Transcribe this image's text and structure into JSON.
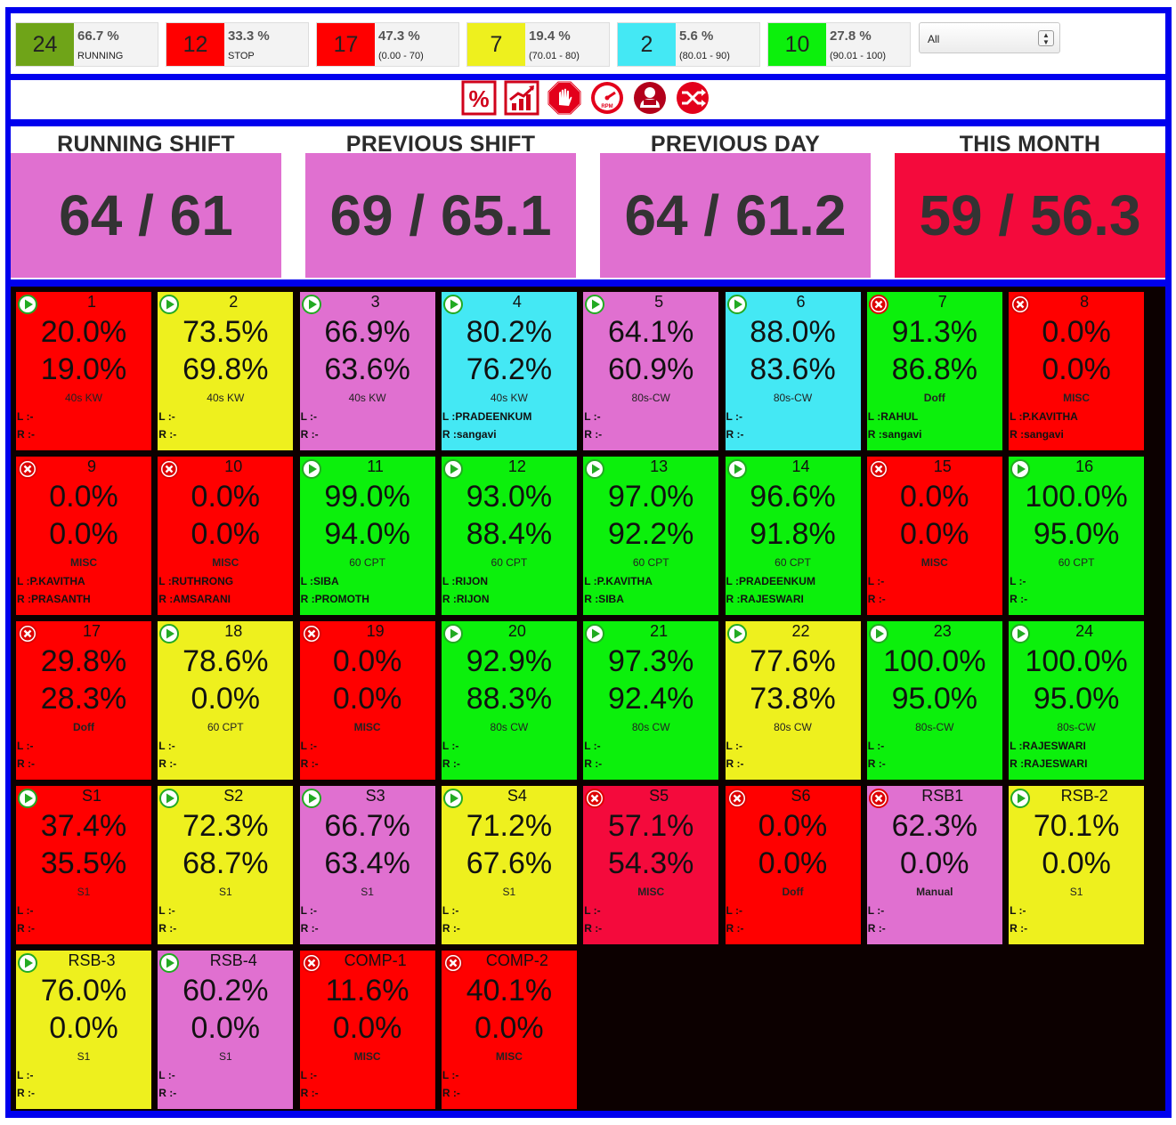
{
  "colors": {
    "red": "#ff0000",
    "yellow": "#eef01e",
    "pink": "#e070d0",
    "cyan": "#44e8f4",
    "green": "#0cf00c",
    "crimson": "#f40a3c",
    "olive": "#6fa418",
    "frame_blue": "#0000ee"
  },
  "summary": [
    {
      "count": "24",
      "pct": "66.7 %",
      "label": "RUNNING",
      "color": "#6fa418"
    },
    {
      "count": "12",
      "pct": "33.3 %",
      "label": "STOP",
      "color": "#ff0000"
    },
    {
      "count": "17",
      "pct": "47.3 %",
      "label": "(0.00 - 70)",
      "color": "#ff0000"
    },
    {
      "count": "7",
      "pct": "19.4 %",
      "label": "(70.01 - 80)",
      "color": "#eef01e"
    },
    {
      "count": "2",
      "pct": "5.6 %",
      "label": "(80.01 - 90)",
      "color": "#44e8f4"
    },
    {
      "count": "10",
      "pct": "27.8 %",
      "label": "(90.01 - 100)",
      "color": "#0cf00c"
    }
  ],
  "filter": {
    "selected": "All"
  },
  "toolbar": [
    {
      "icon": "percent-icon"
    },
    {
      "icon": "trend-chart-icon"
    },
    {
      "icon": "stop-hand-icon"
    },
    {
      "icon": "rpm-gauge-icon"
    },
    {
      "icon": "operator-icon"
    },
    {
      "icon": "shuffle-icon"
    }
  ],
  "stats": [
    {
      "title": "RUNNING SHIFT",
      "value": "64 / 61",
      "color": "#e070d0"
    },
    {
      "title": "PREVIOUS SHIFT",
      "value": "69 / 65.1",
      "color": "#e070d0"
    },
    {
      "title": "PREVIOUS DAY",
      "value": "64 / 61.2",
      "color": "#e070d0"
    },
    {
      "title": "THIS MONTH",
      "value": "59 / 56.3",
      "color": "#f40a3c"
    }
  ],
  "machines": [
    {
      "id": "1",
      "p1": "20.0%",
      "p2": "19.0%",
      "cat": "40s KW",
      "l": "L :-",
      "r": "R :-",
      "color": "#ff0000",
      "status": "running"
    },
    {
      "id": "2",
      "p1": "73.5%",
      "p2": "69.8%",
      "cat": "40s KW",
      "l": "L :-",
      "r": "R :-",
      "color": "#eef01e",
      "status": "running"
    },
    {
      "id": "3",
      "p1": "66.9%",
      "p2": "63.6%",
      "cat": "40s KW",
      "l": "L :-",
      "r": "R :-",
      "color": "#e070d0",
      "status": "running"
    },
    {
      "id": "4",
      "p1": "80.2%",
      "p2": "76.2%",
      "cat": "40s KW",
      "l": "L :PRADEENKUM",
      "r": "R :sangavi",
      "color": "#44e8f4",
      "status": "running"
    },
    {
      "id": "5",
      "p1": "64.1%",
      "p2": "60.9%",
      "cat": "80s-CW",
      "l": "L :-",
      "r": "R :-",
      "color": "#e070d0",
      "status": "running"
    },
    {
      "id": "6",
      "p1": "88.0%",
      "p2": "83.6%",
      "cat": "80s-CW",
      "l": "L :-",
      "r": "R :-",
      "color": "#44e8f4",
      "status": "running"
    },
    {
      "id": "7",
      "p1": "91.3%",
      "p2": "86.8%",
      "cat": "Doff",
      "l": "L :RAHUL",
      "r": "R :sangavi",
      "color": "#0cf00c",
      "status": "stopped"
    },
    {
      "id": "8",
      "p1": "0.0%",
      "p2": "0.0%",
      "cat": "MISC",
      "l": "L :P.KAVITHA",
      "r": "R :sangavi",
      "color": "#ff0000",
      "status": "stopped"
    },
    {
      "id": "9",
      "p1": "0.0%",
      "p2": "0.0%",
      "cat": "MISC",
      "l": "L :P.KAVITHA",
      "r": "R :PRASANTH",
      "color": "#ff0000",
      "status": "stopped"
    },
    {
      "id": "10",
      "p1": "0.0%",
      "p2": "0.0%",
      "cat": "MISC",
      "l": "L :RUTHRONG",
      "r": "R :AMSARANI",
      "color": "#ff0000",
      "status": "stopped"
    },
    {
      "id": "11",
      "p1": "99.0%",
      "p2": "94.0%",
      "cat": "60 CPT",
      "l": "L :SIBA",
      "r": "R :PROMOTH",
      "color": "#0cf00c",
      "status": "running"
    },
    {
      "id": "12",
      "p1": "93.0%",
      "p2": "88.4%",
      "cat": "60 CPT",
      "l": "L :RIJON",
      "r": "R :RIJON",
      "color": "#0cf00c",
      "status": "running"
    },
    {
      "id": "13",
      "p1": "97.0%",
      "p2": "92.2%",
      "cat": "60 CPT",
      "l": "L :P.KAVITHA",
      "r": "R :SIBA",
      "color": "#0cf00c",
      "status": "running"
    },
    {
      "id": "14",
      "p1": "96.6%",
      "p2": "91.8%",
      "cat": "60 CPT",
      "l": "L :PRADEENKUM",
      "r": "R :RAJESWARI",
      "color": "#0cf00c",
      "status": "running"
    },
    {
      "id": "15",
      "p1": "0.0%",
      "p2": "0.0%",
      "cat": "MISC",
      "l": "L :-",
      "r": "R :-",
      "color": "#ff0000",
      "status": "stopped"
    },
    {
      "id": "16",
      "p1": "100.0%",
      "p2": "95.0%",
      "cat": "60 CPT",
      "l": "L :-",
      "r": "R :-",
      "color": "#0cf00c",
      "status": "running"
    },
    {
      "id": "17",
      "p1": "29.8%",
      "p2": "28.3%",
      "cat": "Doff",
      "l": "L :-",
      "r": "R :-",
      "color": "#ff0000",
      "status": "stopped"
    },
    {
      "id": "18",
      "p1": "78.6%",
      "p2": "0.0%",
      "cat": "60 CPT",
      "l": "L :-",
      "r": "R :-",
      "color": "#eef01e",
      "status": "running"
    },
    {
      "id": "19",
      "p1": "0.0%",
      "p2": "0.0%",
      "cat": "MISC",
      "l": "L :-",
      "r": "R :-",
      "color": "#ff0000",
      "status": "stopped"
    },
    {
      "id": "20",
      "p1": "92.9%",
      "p2": "88.3%",
      "cat": "80s CW",
      "l": "L :-",
      "r": "R :-",
      "color": "#0cf00c",
      "status": "running"
    },
    {
      "id": "21",
      "p1": "97.3%",
      "p2": "92.4%",
      "cat": "80s CW",
      "l": "L :-",
      "r": "R :-",
      "color": "#0cf00c",
      "status": "running"
    },
    {
      "id": "22",
      "p1": "77.6%",
      "p2": "73.8%",
      "cat": "80s CW",
      "l": "L :-",
      "r": "R :-",
      "color": "#eef01e",
      "status": "running"
    },
    {
      "id": "23",
      "p1": "100.0%",
      "p2": "95.0%",
      "cat": "80s-CW",
      "l": "L :-",
      "r": "R :-",
      "color": "#0cf00c",
      "status": "running"
    },
    {
      "id": "24",
      "p1": "100.0%",
      "p2": "95.0%",
      "cat": "80s-CW",
      "l": "L :RAJESWARI",
      "r": "R :RAJESWARI",
      "color": "#0cf00c",
      "status": "running"
    },
    {
      "id": "S1",
      "p1": "37.4%",
      "p2": "35.5%",
      "cat": "S1",
      "l": "L :-",
      "r": "R :-",
      "color": "#ff0000",
      "status": "running"
    },
    {
      "id": "S2",
      "p1": "72.3%",
      "p2": "68.7%",
      "cat": "S1",
      "l": "L :-",
      "r": "R :-",
      "color": "#eef01e",
      "status": "running"
    },
    {
      "id": "S3",
      "p1": "66.7%",
      "p2": "63.4%",
      "cat": "S1",
      "l": "L :-",
      "r": "R :-",
      "color": "#e070d0",
      "status": "running"
    },
    {
      "id": "S4",
      "p1": "71.2%",
      "p2": "67.6%",
      "cat": "S1",
      "l": "L :-",
      "r": "R :-",
      "color": "#eef01e",
      "status": "running"
    },
    {
      "id": "S5",
      "p1": "57.1%",
      "p2": "54.3%",
      "cat": "MISC",
      "l": "L :-",
      "r": "R :-",
      "color": "#f40a3c",
      "status": "stopped"
    },
    {
      "id": "S6",
      "p1": "0.0%",
      "p2": "0.0%",
      "cat": "Doff",
      "l": "L :-",
      "r": "R :-",
      "color": "#ff0000",
      "status": "stopped"
    },
    {
      "id": "RSB1",
      "p1": "62.3%",
      "p2": "0.0%",
      "cat": "Manual",
      "l": "L :-",
      "r": "R :-",
      "color": "#e070d0",
      "status": "stopped"
    },
    {
      "id": "RSB-2",
      "p1": "70.1%",
      "p2": "0.0%",
      "cat": "S1",
      "l": "L :-",
      "r": "R :-",
      "color": "#eef01e",
      "status": "running"
    },
    {
      "id": "RSB-3",
      "p1": "76.0%",
      "p2": "0.0%",
      "cat": "S1",
      "l": "L :-",
      "r": "R :-",
      "color": "#eef01e",
      "status": "running"
    },
    {
      "id": "RSB-4",
      "p1": "60.2%",
      "p2": "0.0%",
      "cat": "S1",
      "l": "L :-",
      "r": "R :-",
      "color": "#e070d0",
      "status": "running"
    },
    {
      "id": "COMP-1",
      "p1": "11.6%",
      "p2": "0.0%",
      "cat": "MISC",
      "l": "L :-",
      "r": "R :-",
      "color": "#ff0000",
      "status": "stopped"
    },
    {
      "id": "COMP-2",
      "p1": "40.1%",
      "p2": "0.0%",
      "cat": "MISC",
      "l": "L :-",
      "r": "R :-",
      "color": "#ff0000",
      "status": "stopped"
    }
  ]
}
